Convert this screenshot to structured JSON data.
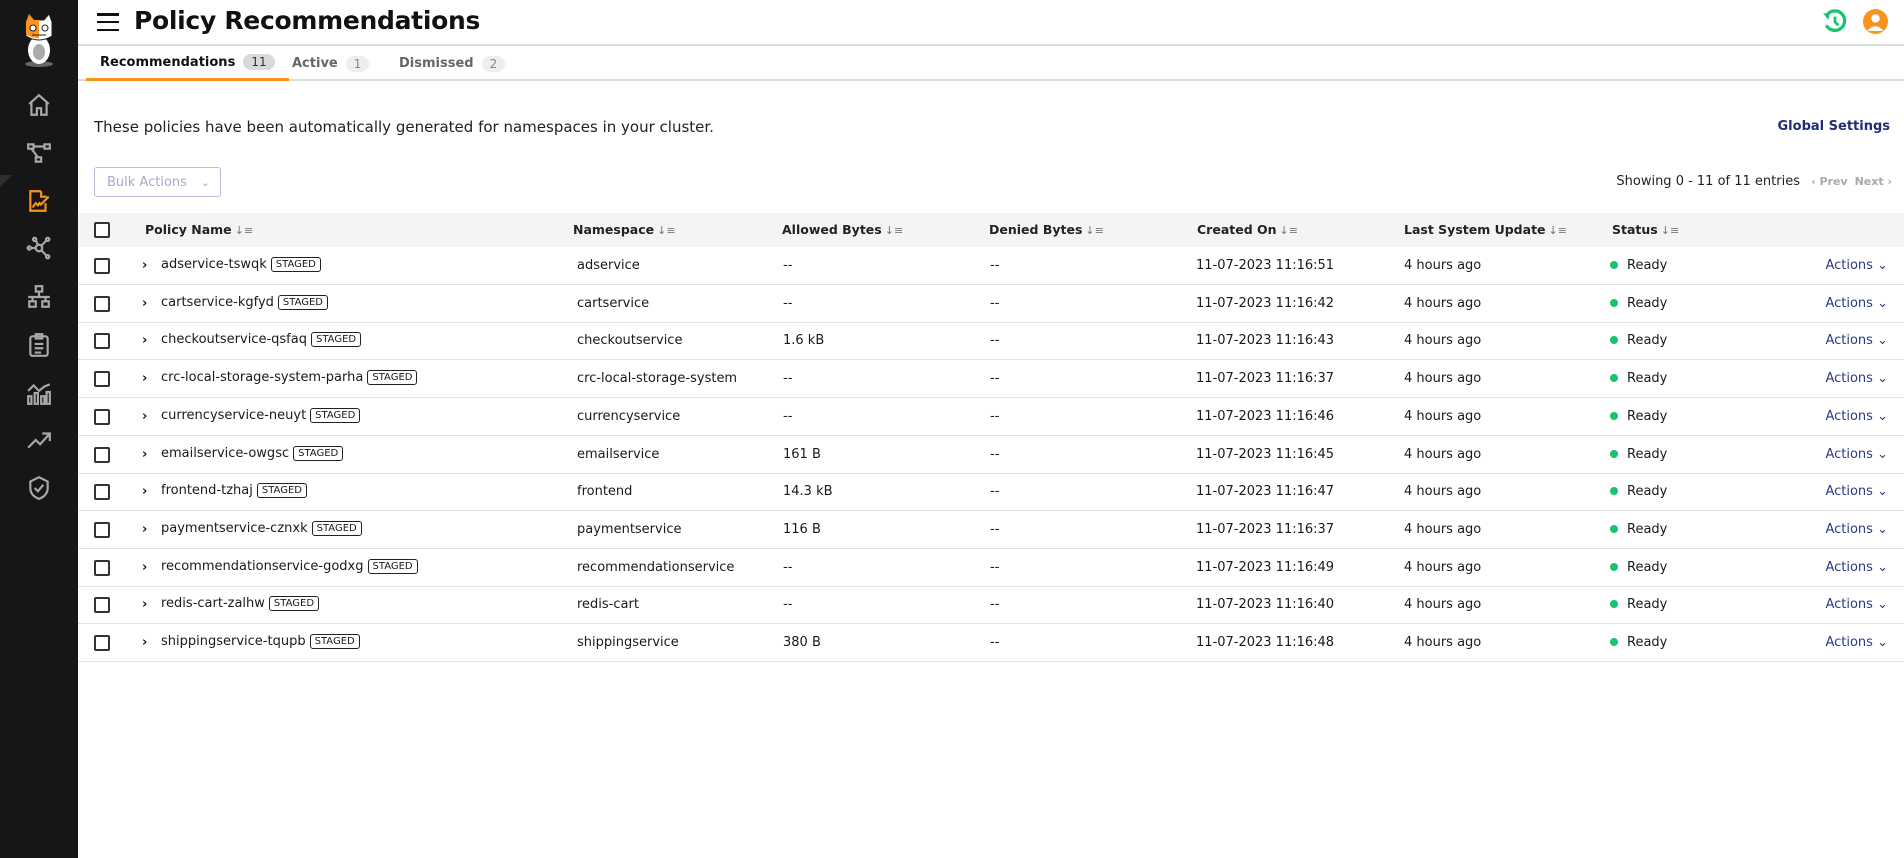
{
  "header": {
    "title": "Policy Recommendations"
  },
  "colors": {
    "accent": "#f7931e",
    "ready": "#17c36b",
    "link": "#1f2e78"
  },
  "sidebar": {
    "items": [
      "home-icon",
      "topology-icon",
      "policy-recommendations-icon",
      "network-icon",
      "hierarchy-icon",
      "clipboard-icon",
      "analytics-icon",
      "trend-icon",
      "shield-icon"
    ],
    "active": "policy-recommendations-icon"
  },
  "tabs": [
    {
      "label": "Recommendations",
      "count": "11"
    },
    {
      "label": "Active",
      "count": "1"
    },
    {
      "label": "Dismissed",
      "count": "2"
    }
  ],
  "description": "These policies have been automatically generated for namespaces in your cluster.",
  "global_settings": "Global Settings",
  "bulk_actions": "Bulk Actions",
  "pagination": {
    "showing": "Showing 0 - 11 of 11 entries",
    "prev": "Prev",
    "next": "Next"
  },
  "table": {
    "columns": [
      "Policy Name",
      "Namespace",
      "Allowed Bytes",
      "Denied Bytes",
      "Created On",
      "Last System Update",
      "Status"
    ],
    "staged_label": "STAGED",
    "actions_label": "Actions",
    "rows": [
      {
        "name": "adservice-tswqk",
        "namespace": "adservice",
        "allowed": "--",
        "denied": "--",
        "created": "11-07-2023 11:16:51",
        "updated": "4 hours ago",
        "status": "Ready"
      },
      {
        "name": "cartservice-kgfyd",
        "namespace": "cartservice",
        "allowed": "--",
        "denied": "--",
        "created": "11-07-2023 11:16:42",
        "updated": "4 hours ago",
        "status": "Ready"
      },
      {
        "name": "checkoutservice-qsfaq",
        "namespace": "checkoutservice",
        "allowed": "1.6 kB",
        "denied": "--",
        "created": "11-07-2023 11:16:43",
        "updated": "4 hours ago",
        "status": "Ready"
      },
      {
        "name": "crc-local-storage-system-parha",
        "namespace": "crc-local-storage-system",
        "allowed": "--",
        "denied": "--",
        "created": "11-07-2023 11:16:37",
        "updated": "4 hours ago",
        "status": "Ready"
      },
      {
        "name": "currencyservice-neuyt",
        "namespace": "currencyservice",
        "allowed": "--",
        "denied": "--",
        "created": "11-07-2023 11:16:46",
        "updated": "4 hours ago",
        "status": "Ready"
      },
      {
        "name": "emailservice-owgsc",
        "namespace": "emailservice",
        "allowed": "161 B",
        "denied": "--",
        "created": "11-07-2023 11:16:45",
        "updated": "4 hours ago",
        "status": "Ready"
      },
      {
        "name": "frontend-tzhaj",
        "namespace": "frontend",
        "allowed": "14.3 kB",
        "denied": "--",
        "created": "11-07-2023 11:16:47",
        "updated": "4 hours ago",
        "status": "Ready"
      },
      {
        "name": "paymentservice-cznxk",
        "namespace": "paymentservice",
        "allowed": "116 B",
        "denied": "--",
        "created": "11-07-2023 11:16:37",
        "updated": "4 hours ago",
        "status": "Ready"
      },
      {
        "name": "recommendationservice-godxg",
        "namespace": "recommendationservice",
        "allowed": "--",
        "denied": "--",
        "created": "11-07-2023 11:16:49",
        "updated": "4 hours ago",
        "status": "Ready"
      },
      {
        "name": "redis-cart-zalhw",
        "namespace": "redis-cart",
        "allowed": "--",
        "denied": "--",
        "created": "11-07-2023 11:16:40",
        "updated": "4 hours ago",
        "status": "Ready"
      },
      {
        "name": "shippingservice-tqupb",
        "namespace": "shippingservice",
        "allowed": "380 B",
        "denied": "--",
        "created": "11-07-2023 11:16:48",
        "updated": "4 hours ago",
        "status": "Ready"
      }
    ]
  }
}
